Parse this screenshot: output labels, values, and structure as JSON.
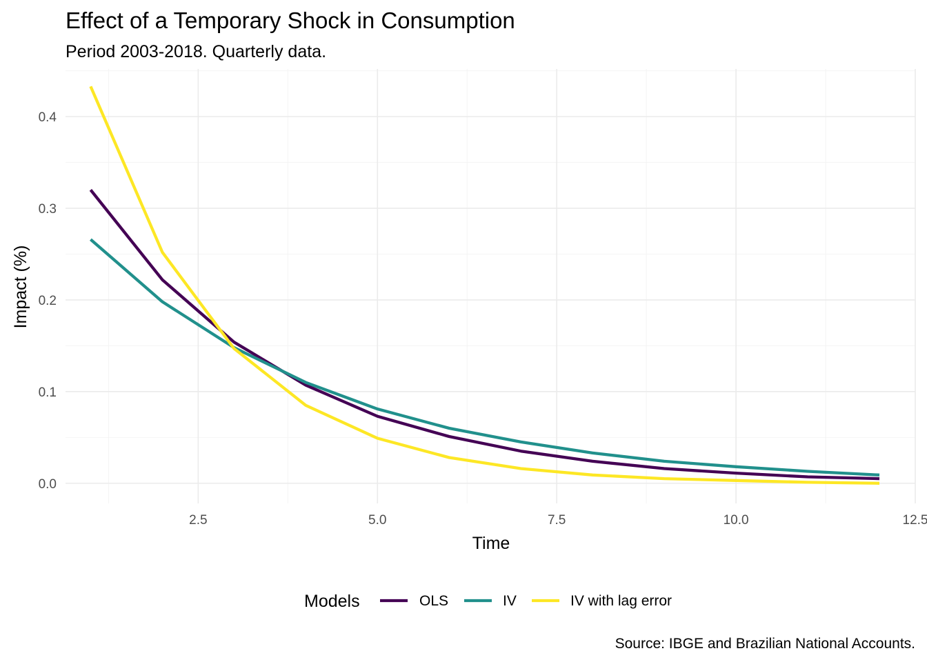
{
  "chart_data": {
    "type": "line",
    "title": "Effect of a Temporary Shock in Consumption",
    "subtitle": "Period 2003-2018. Quarterly data.",
    "xlabel": "Time",
    "ylabel": "Impact (%)",
    "caption": "Source: IBGE and Brazilian National Accounts.",
    "xlim": [
      0.65,
      12.5
    ],
    "ylim": [
      -0.022,
      0.452
    ],
    "x_ticks": [
      2.5,
      5.0,
      7.5,
      10.0,
      12.5
    ],
    "x_tick_labels": [
      "2.5",
      "5.0",
      "7.5",
      "10.0",
      "12.5"
    ],
    "y_ticks": [
      0.0,
      0.1,
      0.2,
      0.3,
      0.4
    ],
    "y_tick_labels": [
      "0.0",
      "0.1",
      "0.2",
      "0.3",
      "0.4"
    ],
    "grid": true,
    "legend": {
      "title": "Models",
      "position": "bottom"
    },
    "x": [
      1,
      2,
      3,
      4,
      5,
      6,
      7,
      8,
      9,
      10,
      11,
      12
    ],
    "series": [
      {
        "name": "OLS",
        "color": "#440154",
        "values": [
          0.32,
          0.222,
          0.154,
          0.107,
          0.073,
          0.051,
          0.035,
          0.024,
          0.016,
          0.011,
          0.007,
          0.005
        ]
      },
      {
        "name": "IV",
        "color": "#21908c",
        "values": [
          0.266,
          0.198,
          0.148,
          0.11,
          0.081,
          0.06,
          0.045,
          0.033,
          0.024,
          0.018,
          0.013,
          0.009
        ]
      },
      {
        "name": "IV with lag error",
        "color": "#fde725",
        "values": [
          0.433,
          0.252,
          0.147,
          0.085,
          0.049,
          0.028,
          0.016,
          0.009,
          0.005,
          0.003,
          0.001,
          0.0
        ]
      }
    ]
  }
}
